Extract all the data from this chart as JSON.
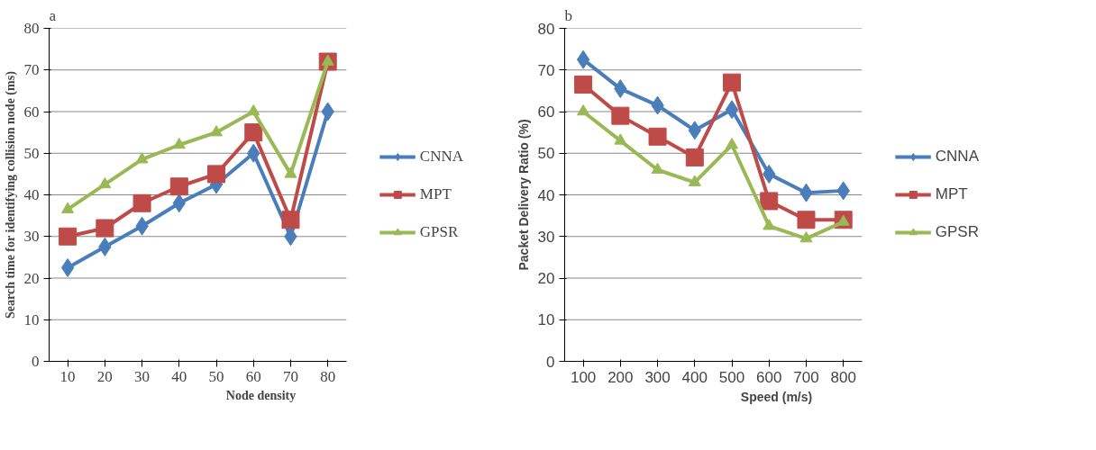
{
  "chart_data": [
    {
      "type": "line",
      "title": "a",
      "xlabel": "Node density",
      "ylabel": "Search time for identifying collision node (ms)",
      "categories": [
        "10",
        "20",
        "30",
        "40",
        "50",
        "60",
        "70",
        "80"
      ],
      "ylim": [
        0,
        80
      ],
      "yticks": [
        0,
        10,
        20,
        30,
        40,
        50,
        60,
        70,
        80
      ],
      "grid": "y",
      "legend": "right",
      "series": [
        {
          "name": "CNNA",
          "color": "#4a7ebb",
          "marker": "diamond",
          "values": [
            22.5,
            27.5,
            32.5,
            38,
            42.5,
            50,
            30,
            60
          ]
        },
        {
          "name": "MPT",
          "color": "#be4b48",
          "marker": "square",
          "values": [
            30,
            32,
            38,
            42,
            45,
            55,
            34,
            72
          ]
        },
        {
          "name": "GPSR",
          "color": "#98b954",
          "marker": "triangle",
          "values": [
            36.5,
            42.5,
            48.5,
            52,
            55,
            60,
            45,
            72
          ]
        }
      ]
    },
    {
      "type": "line",
      "title": "b",
      "xlabel": "Speed (m/s)",
      "ylabel": "Packet Delivery Ratio (%)",
      "categories": [
        "100",
        "200",
        "300",
        "400",
        "500",
        "600",
        "700",
        "800"
      ],
      "ylim": [
        0,
        80
      ],
      "yticks": [
        0,
        10,
        20,
        30,
        40,
        50,
        60,
        70,
        80
      ],
      "grid": "y",
      "legend": "right",
      "series": [
        {
          "name": "CNNA",
          "color": "#4a7ebb",
          "marker": "diamond",
          "values": [
            72.5,
            65.5,
            61.5,
            55.5,
            60.5,
            45,
            40.5,
            41
          ]
        },
        {
          "name": "MPT",
          "color": "#be4b48",
          "marker": "square",
          "values": [
            66.5,
            59,
            54,
            49,
            67,
            38.5,
            34,
            34
          ]
        },
        {
          "name": "GPSR",
          "color": "#98b954",
          "marker": "triangle",
          "values": [
            60,
            53,
            46,
            43,
            52,
            32.5,
            29.5,
            33.5
          ]
        }
      ]
    }
  ]
}
